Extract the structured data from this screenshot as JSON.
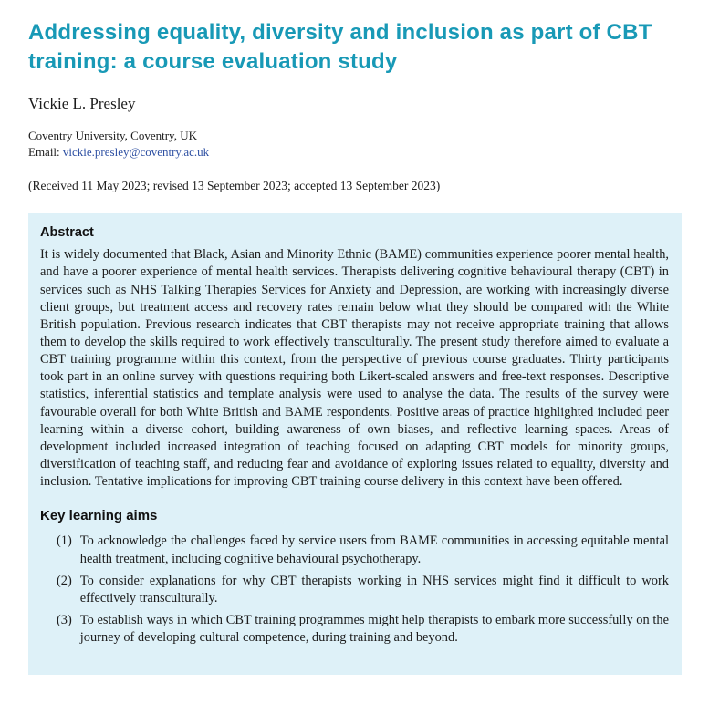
{
  "paper": {
    "title": "Addressing equality, diversity and inclusion as part of CBT training: a course evaluation study",
    "author": "Vickie L. Presley",
    "affiliation": "Coventry University, Coventry, UK",
    "email_label": "Email: ",
    "email": "vickie.presley@coventry.ac.uk",
    "dates": "(Received 11 May 2023; revised 13 September 2023; accepted 13 September 2023)",
    "accent_color": "#1899b6",
    "abstract_bg_color": "#def1f8",
    "abstract": {
      "heading": "Abstract",
      "body": "It is widely documented that Black, Asian and Minority Ethnic (BAME) communities experience poorer mental health, and have a poorer experience of mental health services. Therapists delivering cognitive behavioural therapy (CBT) in services such as NHS Talking Therapies Services for Anxiety and Depression, are working with increasingly diverse client groups, but treatment access and recovery rates remain below what they should be compared with the White British population. Previous research indicates that CBT therapists may not receive appropriate training that allows them to develop the skills required to work effectively transculturally. The present study therefore aimed to evaluate a CBT training programme within this context, from the perspective of previous course graduates. Thirty participants took part in an online survey with questions requiring both Likert-scaled answers and free-text responses. Descriptive statistics, inferential statistics and template analysis were used to analyse the data. The results of the survey were favourable overall for both White British and BAME respondents. Positive areas of practice highlighted included peer learning within a diverse cohort, building awareness of own biases, and reflective learning spaces. Areas of development included increased integration of teaching focused on adapting CBT models for minority groups, diversification of teaching staff, and reducing fear and avoidance of exploring issues related to equality, diversity and inclusion. Tentative implications for improving CBT training course delivery in this context have been offered."
    },
    "key_learning_aims": {
      "heading": "Key learning aims",
      "markers": [
        "(1)",
        "(2)",
        "(3)"
      ],
      "items": [
        "To acknowledge the challenges faced by service users from BAME communities in accessing equitable mental health treatment, including cognitive behavioural psychotherapy.",
        "To consider explanations for why CBT therapists working in NHS services might find it difficult to work effectively transculturally.",
        "To establish ways in which CBT training programmes might help therapists to embark more successfully on the journey of developing cultural competence, during training and beyond."
      ]
    }
  }
}
